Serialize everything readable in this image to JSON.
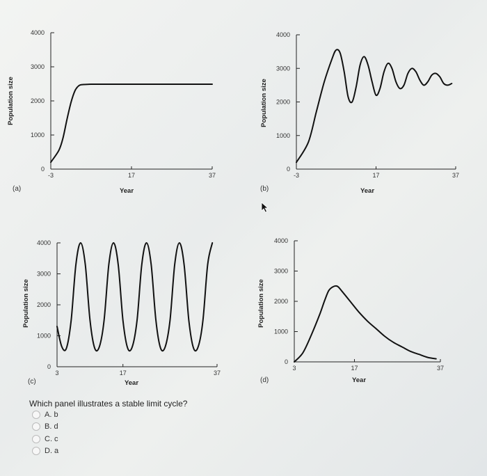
{
  "chart_data": [
    {
      "type": "line",
      "panel_label": "(a)",
      "xlabel": "Year",
      "ylabel": "Population size",
      "x_ticks": [
        "-3",
        "17",
        "37"
      ],
      "y_ticks": [
        "0",
        "1000",
        "2000",
        "3000",
        "4000"
      ],
      "xlim": [
        -3,
        37
      ],
      "ylim": [
        0,
        4000
      ],
      "x": [
        -3,
        -1,
        0,
        1,
        2,
        3,
        4,
        5,
        7,
        10,
        15,
        20,
        25,
        30,
        37
      ],
      "y": [
        200,
        550,
        900,
        1450,
        1950,
        2300,
        2450,
        2480,
        2490,
        2490,
        2490,
        2490,
        2490,
        2490,
        2490
      ]
    },
    {
      "type": "line",
      "panel_label": "(b)",
      "xlabel": "Year",
      "ylabel": "Population size",
      "x_ticks": [
        "-3",
        "17",
        "37"
      ],
      "y_ticks": [
        "0",
        "1000",
        "2000",
        "3000",
        "4000"
      ],
      "xlim": [
        -3,
        37
      ],
      "ylim": [
        0,
        4000
      ],
      "x": [
        -3,
        0,
        2,
        4,
        6,
        7,
        8,
        9,
        10,
        11,
        12,
        13,
        14,
        15,
        16,
        17,
        18,
        19,
        20,
        21,
        22,
        23,
        24,
        25,
        26,
        27,
        28,
        29,
        30,
        31,
        32,
        33,
        34,
        35,
        36
      ],
      "y": [
        200,
        800,
        1700,
        2600,
        3300,
        3550,
        3450,
        2900,
        2150,
        2000,
        2450,
        3100,
        3350,
        3100,
        2600,
        2200,
        2400,
        2900,
        3150,
        3000,
        2600,
        2400,
        2500,
        2850,
        3000,
        2900,
        2650,
        2500,
        2600,
        2800,
        2850,
        2750,
        2550,
        2500,
        2550
      ]
    },
    {
      "type": "line",
      "panel_label": "(c)",
      "xlabel": "Year",
      "ylabel": "Population size",
      "x_ticks": [
        "3",
        "17",
        "37"
      ],
      "y_ticks": [
        "0",
        "1000",
        "2000",
        "3000",
        "4000"
      ],
      "xlim": [
        3,
        37
      ],
      "ylim": [
        0,
        4000
      ],
      "x": [
        3,
        4,
        5,
        6,
        7,
        8,
        9,
        10,
        11,
        12,
        13,
        14,
        15,
        16,
        17,
        18,
        19,
        20,
        21,
        22,
        23,
        24,
        25,
        26,
        27,
        28,
        29,
        30,
        31,
        32,
        33,
        34,
        35,
        36
      ],
      "y": [
        1300,
        650,
        600,
        1500,
        3300,
        4000,
        3300,
        1500,
        600,
        650,
        1500,
        3300,
        4000,
        3300,
        1500,
        600,
        650,
        1500,
        3300,
        4000,
        3300,
        1500,
        600,
        650,
        1500,
        3300,
        4000,
        3300,
        1500,
        600,
        650,
        1500,
        3300,
        4000
      ]
    },
    {
      "type": "line",
      "panel_label": "(d)",
      "xlabel": "Year",
      "ylabel": "Population size",
      "x_ticks": [
        "3",
        "17",
        "37"
      ],
      "y_ticks": [
        "0",
        "1000",
        "2000",
        "3000",
        "4000"
      ],
      "xlim": [
        3,
        37
      ],
      "ylim": [
        0,
        4000
      ],
      "x": [
        3,
        5,
        7,
        9,
        10,
        11,
        12,
        13,
        14,
        16,
        18,
        20,
        22,
        24,
        26,
        28,
        30,
        32,
        34,
        36
      ],
      "y": [
        0,
        300,
        900,
        1600,
        2000,
        2350,
        2480,
        2500,
        2350,
        2000,
        1650,
        1350,
        1100,
        850,
        650,
        500,
        350,
        250,
        150,
        100
      ]
    }
  ],
  "question": {
    "text": "Which panel illustrates a stable limit cycle?",
    "options": [
      {
        "label": "A. b"
      },
      {
        "label": "B. d"
      },
      {
        "label": "C. c"
      },
      {
        "label": "D. a"
      }
    ]
  }
}
